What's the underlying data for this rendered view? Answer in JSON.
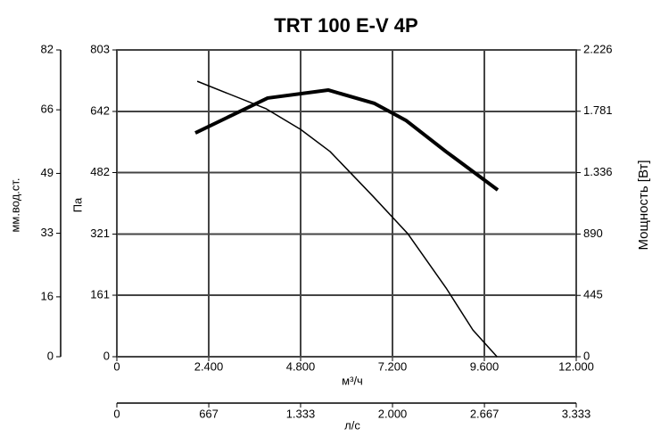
{
  "chart_data": {
    "type": "line",
    "title": "TRT 100 E-V 4P",
    "x_label": "м³/ч",
    "xlim": [
      0,
      12000
    ],
    "xticks": [
      0,
      {
        "value": 2400,
        "label": "2.400"
      },
      {
        "value": 4800,
        "label": "4.800"
      },
      {
        "value": 7200,
        "label": "7.200"
      },
      {
        "value": 9600,
        "label": "9.600"
      },
      {
        "value": 12000,
        "label": "12.000"
      }
    ],
    "y_label": "Па",
    "ylim": [
      0,
      803
    ],
    "yticks": [
      0,
      161,
      321,
      482,
      642,
      803
    ],
    "y_mm_label": "мм.вод.ст.",
    "y_mm_lim": [
      0,
      82
    ],
    "y_mm_ticks": [
      0,
      16,
      33,
      49,
      66,
      82
    ],
    "y2_label": "Мощность [Вт]",
    "y2lim": [
      0,
      2226
    ],
    "y2ticks": [
      0,
      445,
      890,
      {
        "value": 1336,
        "label": "1.336"
      },
      {
        "value": 1781,
        "label": "1.781"
      },
      {
        "value": 2226,
        "label": "2.226"
      }
    ],
    "x2_label": "л/с",
    "x2lim": [
      0,
      3333
    ],
    "x2ticks": [
      0,
      667,
      {
        "value": 1333,
        "label": "1.333"
      },
      {
        "value": 2000,
        "label": "2.000"
      },
      {
        "value": 2667,
        "label": "2.667"
      },
      {
        "value": 3333,
        "label": "3.333"
      }
    ],
    "grid": true,
    "series": [
      {
        "color": "#000000",
        "width": 1.5,
        "x": [
          2100,
          3900,
          4800,
          5570,
          6690,
          7600,
          8600,
          9300,
          9930
        ],
        "values": [
          721,
          649,
          595,
          537,
          420,
          322,
          180,
          70,
          0
        ]
      },
      {
        "color": "#000000",
        "width": 4,
        "axis": "y2",
        "x": [
          2050,
          3940,
          5520,
          6730,
          7550,
          8600,
          9950
        ],
        "values": [
          1624,
          1877,
          1935,
          1838,
          1715,
          1488,
          1210
        ]
      }
    ]
  }
}
